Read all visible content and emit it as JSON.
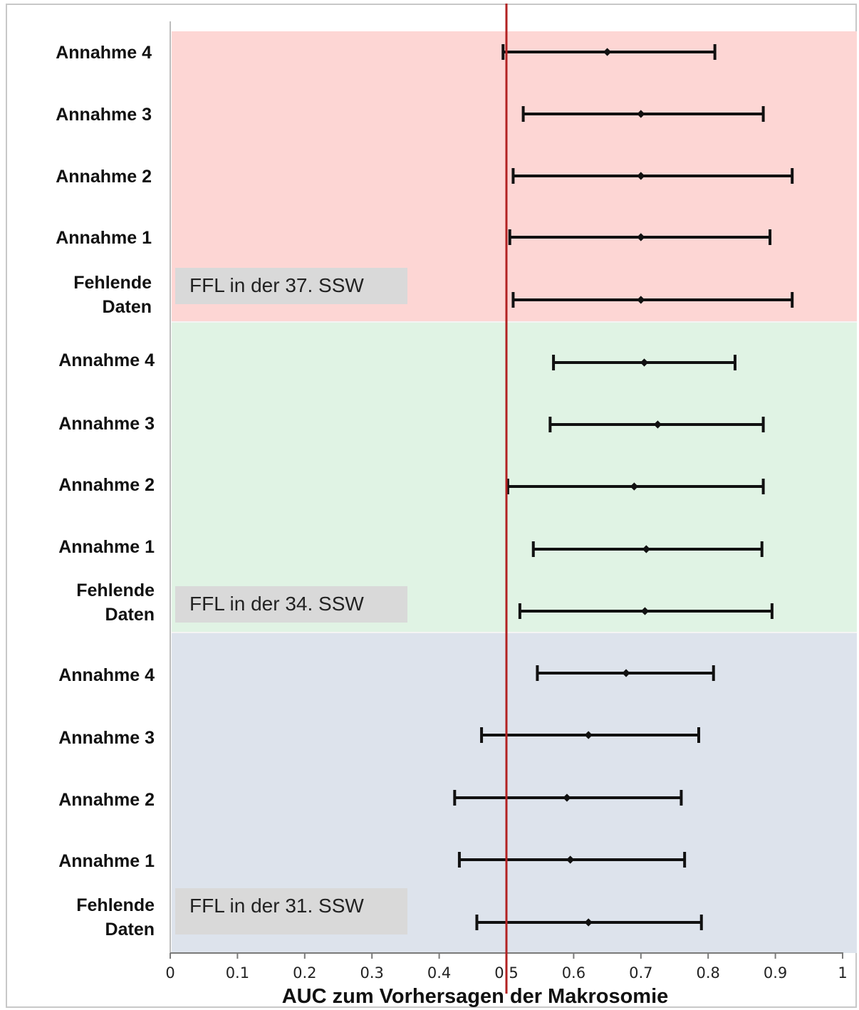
{
  "chart_data": {
    "type": "forest",
    "xlabel": "AUC zum Vorhersagen der Makrosomie",
    "xlim": [
      0,
      1
    ],
    "xticks": [
      "0",
      "0.1",
      "0.2",
      "0.3",
      "0.4",
      "0.5",
      "0.6",
      "0.7",
      "0.8",
      "0.9",
      "1"
    ],
    "reference_line": 0.5,
    "reference_line_color": "#b22222",
    "groups": [
      {
        "label": "FFL in der 37. SSW",
        "color": "#fdd6d4",
        "rows": [
          {
            "label": "Annahme 4",
            "estimate": 0.65,
            "lower": 0.495,
            "upper": 0.81
          },
          {
            "label": "Annahme 3",
            "estimate": 0.7,
            "lower": 0.525,
            "upper": 0.882
          },
          {
            "label": "Annahme 2",
            "estimate": 0.7,
            "lower": 0.51,
            "upper": 0.925
          },
          {
            "label": "Annahme 1",
            "estimate": 0.7,
            "lower": 0.505,
            "upper": 0.892
          },
          {
            "label": "Fehlende\nDaten",
            "estimate": 0.7,
            "lower": 0.51,
            "upper": 0.925
          }
        ]
      },
      {
        "label": "FFL in der 34. SSW",
        "color": "#e0f3e4",
        "rows": [
          {
            "label": "Annahme 4",
            "estimate": 0.705,
            "lower": 0.57,
            "upper": 0.84
          },
          {
            "label": "Annahme 3",
            "estimate": 0.725,
            "lower": 0.565,
            "upper": 0.882
          },
          {
            "label": "Annahme 2",
            "estimate": 0.69,
            "lower": 0.502,
            "upper": 0.882
          },
          {
            "label": "Annahme 1",
            "estimate": 0.708,
            "lower": 0.54,
            "upper": 0.88
          },
          {
            "label": "Fehlende\nDaten",
            "estimate": 0.706,
            "lower": 0.52,
            "upper": 0.895
          }
        ]
      },
      {
        "label": "FFL in der 31. SSW",
        "color": "#dde3ec",
        "rows": [
          {
            "label": "Annahme 4",
            "estimate": 0.678,
            "lower": 0.546,
            "upper": 0.808
          },
          {
            "label": "Annahme 3",
            "estimate": 0.622,
            "lower": 0.463,
            "upper": 0.786
          },
          {
            "label": "Annahme 2",
            "estimate": 0.59,
            "lower": 0.423,
            "upper": 0.76
          },
          {
            "label": "Annahme 1",
            "estimate": 0.595,
            "lower": 0.43,
            "upper": 0.765
          },
          {
            "label": "Fehlende\nDaten",
            "estimate": 0.622,
            "lower": 0.456,
            "upper": 0.79
          }
        ]
      }
    ],
    "grid": false
  }
}
